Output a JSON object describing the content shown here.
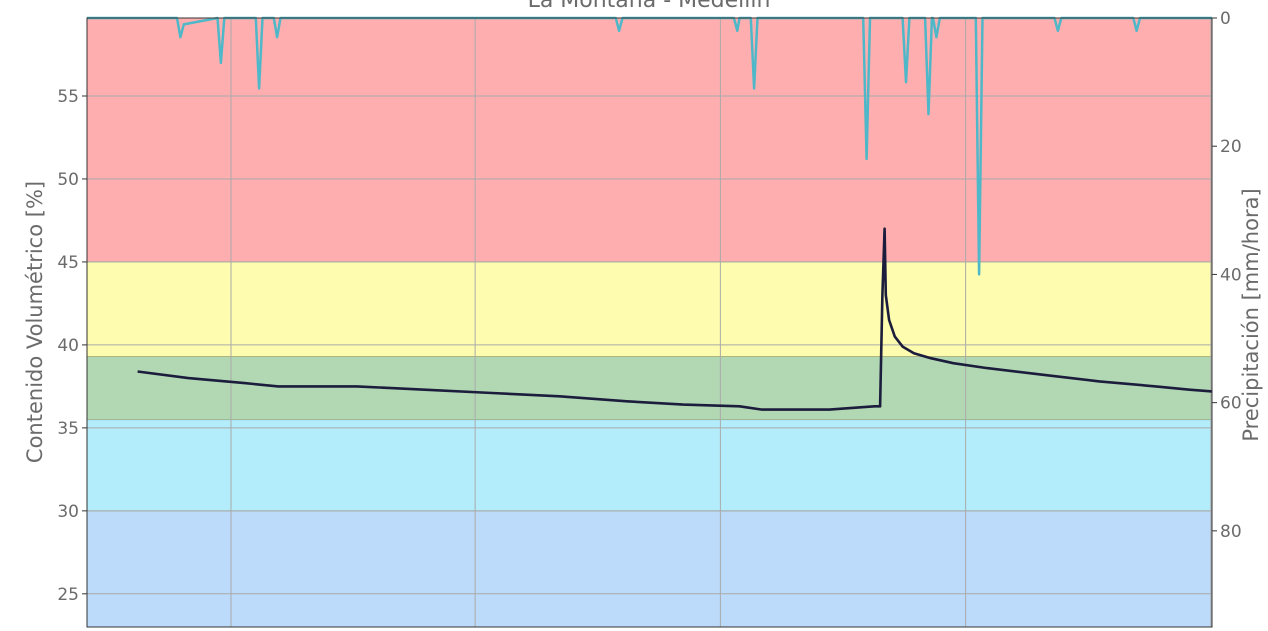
{
  "chart_data": {
    "type": "line",
    "title": "La Montaña - Medellín",
    "ylabel": "Contenido Volumétrico [%]",
    "y2label": "Precipitación [mm/hora]",
    "xlabel": "",
    "ylim": [
      23,
      59.7
    ],
    "y2lim": [
      0,
      95
    ],
    "yticks": [
      25,
      30,
      35,
      40,
      45,
      50,
      55
    ],
    "y2ticks": [
      0,
      20,
      40,
      60,
      80
    ],
    "x_range": [
      0,
      1
    ],
    "x_gridlines": [
      0.128,
      0.345,
      0.563,
      0.781,
      0.999
    ],
    "grid": true,
    "bands": [
      {
        "name": "red",
        "from": 45,
        "to": 59.7,
        "color": "#ffaeb0"
      },
      {
        "name": "yellow",
        "from": 39.3,
        "to": 45,
        "color": "#fefcae"
      },
      {
        "name": "green",
        "from": 35.5,
        "to": 39.3,
        "color": "#b2d8b3"
      },
      {
        "name": "light-blue",
        "from": 30,
        "to": 35.5,
        "color": "#b3ecfb"
      },
      {
        "name": "blue",
        "from": 23,
        "to": 30,
        "color": "#bcdbfb"
      }
    ],
    "series": [
      {
        "axis": "left",
        "color": "#1c1d3d",
        "points": [
          [
            0.045,
            38.4
          ],
          [
            0.09,
            38.0
          ],
          [
            0.14,
            37.7
          ],
          [
            0.17,
            37.5
          ],
          [
            0.24,
            37.5
          ],
          [
            0.3,
            37.3
          ],
          [
            0.36,
            37.1
          ],
          [
            0.42,
            36.9
          ],
          [
            0.48,
            36.6
          ],
          [
            0.53,
            36.4
          ],
          [
            0.58,
            36.3
          ],
          [
            0.6,
            36.1
          ],
          [
            0.66,
            36.1
          ],
          [
            0.7,
            36.3
          ],
          [
            0.705,
            36.3
          ],
          [
            0.707,
            43.0
          ],
          [
            0.709,
            47.0
          ],
          [
            0.71,
            43.0
          ],
          [
            0.713,
            41.5
          ],
          [
            0.718,
            40.5
          ],
          [
            0.725,
            39.9
          ],
          [
            0.735,
            39.5
          ],
          [
            0.75,
            39.2
          ],
          [
            0.77,
            38.9
          ],
          [
            0.8,
            38.6
          ],
          [
            0.85,
            38.2
          ],
          [
            0.9,
            37.8
          ],
          [
            0.95,
            37.5
          ],
          [
            0.98,
            37.3
          ],
          [
            1.0,
            37.2
          ]
        ]
      },
      {
        "axis": "right",
        "color": "#4eb8c8",
        "points": [
          [
            0.0,
            0
          ],
          [
            0.08,
            0
          ],
          [
            0.083,
            3
          ],
          [
            0.086,
            1
          ],
          [
            0.116,
            0
          ],
          [
            0.119,
            7
          ],
          [
            0.122,
            0
          ],
          [
            0.15,
            0
          ],
          [
            0.153,
            11
          ],
          [
            0.156,
            0
          ],
          [
            0.166,
            0
          ],
          [
            0.169,
            3
          ],
          [
            0.172,
            0
          ],
          [
            0.47,
            0
          ],
          [
            0.473,
            2
          ],
          [
            0.476,
            0
          ],
          [
            0.575,
            0
          ],
          [
            0.578,
            2
          ],
          [
            0.58,
            0
          ],
          [
            0.59,
            0
          ],
          [
            0.593,
            11
          ],
          [
            0.596,
            0
          ],
          [
            0.69,
            0
          ],
          [
            0.693,
            22
          ],
          [
            0.696,
            0
          ],
          [
            0.725,
            0
          ],
          [
            0.728,
            10
          ],
          [
            0.731,
            0
          ],
          [
            0.745,
            0
          ],
          [
            0.748,
            15
          ],
          [
            0.751,
            0
          ],
          [
            0.752,
            0
          ],
          [
            0.755,
            3
          ],
          [
            0.758,
            0
          ],
          [
            0.79,
            0
          ],
          [
            0.793,
            40
          ],
          [
            0.796,
            0
          ],
          [
            0.86,
            0
          ],
          [
            0.863,
            2
          ],
          [
            0.866,
            0
          ],
          [
            0.93,
            0
          ],
          [
            0.933,
            2
          ],
          [
            0.936,
            0
          ],
          [
            1.0,
            0
          ]
        ]
      }
    ]
  }
}
